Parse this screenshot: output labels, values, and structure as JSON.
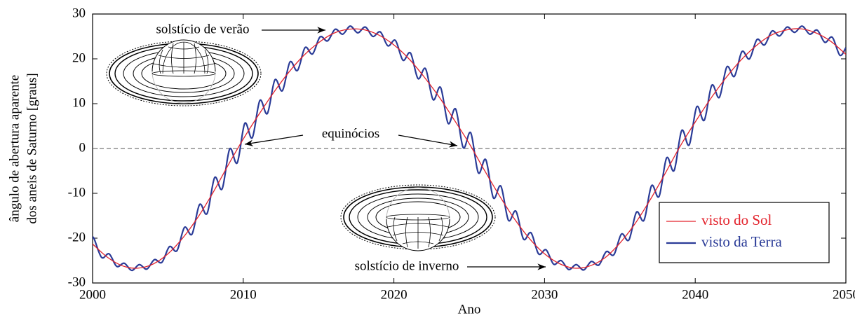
{
  "chart_data": {
    "type": "line",
    "xlabel": "Ano",
    "ylabel": [
      "ângulo de abertura aparente",
      "dos aneis de Saturno [graus]"
    ],
    "xlim": [
      2000,
      2050
    ],
    "xticks": [
      2000,
      2010,
      2020,
      2030,
      2040,
      2050
    ],
    "ylim": [
      -30,
      30
    ],
    "yticks": [
      -30,
      -20,
      -10,
      0,
      10,
      20,
      30
    ],
    "hline": 0,
    "legend": "lower right",
    "annotations": [
      {
        "text": "solstício de verão"
      },
      {
        "text": "equinócios"
      },
      {
        "text": "solstício de inverno"
      }
    ],
    "series": [
      {
        "name": "visto do Sol",
        "color": "#e3232c",
        "x": [
          2000,
          2001,
          2002,
          2003,
          2004,
          2005,
          2006,
          2007,
          2008,
          2009,
          2010,
          2011,
          2012,
          2013,
          2014,
          2015,
          2016,
          2017,
          2018,
          2019,
          2020,
          2021,
          2022,
          2023,
          2024,
          2025,
          2026,
          2027,
          2028,
          2029,
          2030,
          2031,
          2032,
          2033,
          2034,
          2035,
          2036,
          2037,
          2038,
          2039,
          2040,
          2041,
          2042,
          2043,
          2044,
          2045,
          2046,
          2047,
          2048,
          2049,
          2050
        ],
        "values": [
          -21.3,
          -24.3,
          -26.2,
          -26.7,
          -25.8,
          -23.5,
          -19.9,
          -15.3,
          -9.8,
          -3.7,
          2.1,
          7.4,
          12.4,
          16.9,
          20.7,
          23.6,
          25.7,
          26.6,
          26.5,
          25.3,
          23.1,
          20.0,
          16.0,
          11.5,
          6.4,
          1.1,
          -4.8,
          -10.5,
          -15.7,
          -20.1,
          -23.5,
          -25.7,
          -26.7,
          -26.2,
          -24.4,
          -21.1,
          -16.8,
          -11.5,
          -5.6,
          0.5,
          5.9,
          11.0,
          15.6,
          19.6,
          22.8,
          25.2,
          26.4,
          26.7,
          25.8,
          23.9,
          21.0
        ]
      },
      {
        "name": "visto da Terra",
        "color": "#2a3b97",
        "x": [
          2000,
          2000.1,
          2000.6,
          2001.1,
          2001.6,
          2002.1,
          2002.6,
          2003.1,
          2003.6,
          2004.1,
          2004.6,
          2005.1,
          2005.6,
          2006.1,
          2006.6,
          2007.1,
          2007.6,
          2008.1,
          2008.6,
          2009.1,
          2009.6,
          2010.1,
          2010.6,
          2011.1,
          2011.6,
          2012.1,
          2012.6,
          2013.1,
          2013.6,
          2014.1,
          2014.6,
          2015.1,
          2015.6,
          2016.1,
          2016.6,
          2017.1,
          2017.6,
          2018.1,
          2018.6,
          2019.1,
          2019.6,
          2020.1,
          2020.6,
          2021.1,
          2021.6,
          2022.1,
          2022.6,
          2023.1,
          2023.6,
          2024.1,
          2024.6,
          2025.1,
          2025.6,
          2026.1,
          2026.6,
          2027.1,
          2027.6,
          2028.1,
          2028.6,
          2029.1,
          2029.6,
          2030.1,
          2030.6,
          2031.1,
          2031.6,
          2032.1,
          2032.6,
          2033.1,
          2033.6,
          2034.1,
          2034.6,
          2035.1,
          2035.6,
          2036.1,
          2036.6,
          2037.1,
          2037.6,
          2038.1,
          2038.6,
          2039.1,
          2039.6,
          2040.1,
          2040.6,
          2041.1,
          2041.6,
          2042.1,
          2042.6,
          2043.1,
          2043.6,
          2044.1,
          2044.6,
          2045.1,
          2045.6,
          2046.1,
          2046.6,
          2047.1,
          2047.6,
          2048.1,
          2048.6,
          2049.1,
          2049.6,
          2050
        ],
        "values": [
          -20.0,
          -20.1,
          -24.3,
          -23.5,
          -26.3,
          -25.6,
          -27.2,
          -25.9,
          -26.9,
          -24.8,
          -25.4,
          -21.9,
          -22.8,
          -17.6,
          -19.1,
          -12.5,
          -14.5,
          -6.5,
          -9.0,
          -0.1,
          -3.2,
          5.6,
          2.4,
          10.7,
          7.8,
          15.3,
          12.9,
          19.3,
          17.4,
          22.5,
          21.1,
          24.9,
          24.0,
          26.6,
          25.5,
          27.3,
          25.8,
          27.1,
          25.0,
          26.0,
          22.9,
          24.1,
          19.7,
          21.3,
          15.6,
          17.8,
          10.9,
          13.6,
          5.6,
          8.8,
          0.2,
          3.5,
          -5.4,
          -2.5,
          -11.0,
          -8.4,
          -16.0,
          -14.0,
          -20.2,
          -18.8,
          -23.5,
          -22.6,
          -25.8,
          -25.0,
          -27.0,
          -25.9,
          -27.1,
          -25.2,
          -26.0,
          -23.0,
          -23.7,
          -19.1,
          -20.4,
          -14.2,
          -16.0,
          -8.3,
          -10.7,
          -2.1,
          -4.9,
          4.0,
          0.8,
          9.3,
          6.3,
          14.1,
          11.4,
          18.2,
          16.1,
          21.6,
          20.0,
          24.3,
          23.1,
          26.2,
          25.1,
          27.1,
          25.9,
          27.3,
          25.5,
          26.4,
          23.7,
          24.8,
          20.8,
          22.5
        ]
      }
    ]
  }
}
